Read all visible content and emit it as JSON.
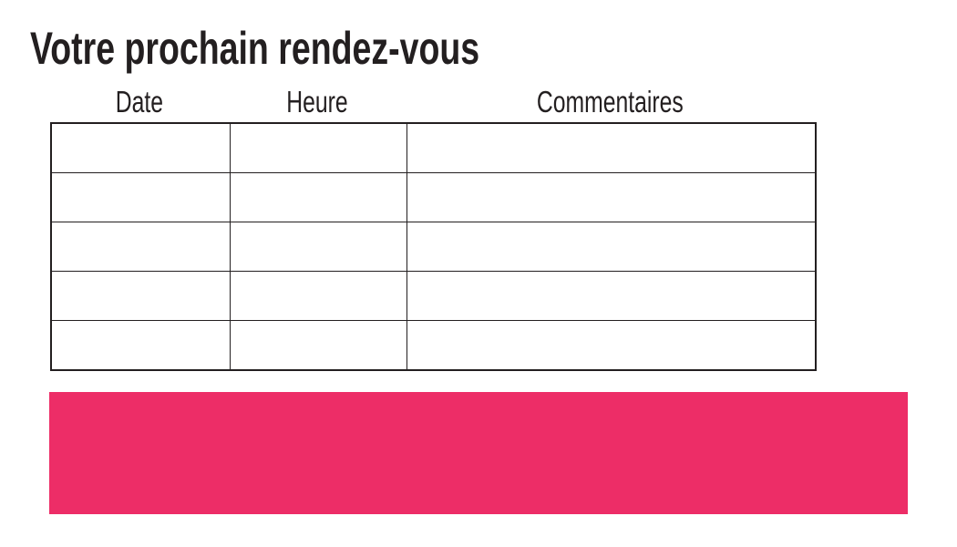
{
  "page": {
    "title": "Votre prochain rendez-vous"
  },
  "table": {
    "columns": [
      {
        "id": "date",
        "label": "Date"
      },
      {
        "id": "heure",
        "label": "Heure"
      },
      {
        "id": "commentaires",
        "label": "Commentaires"
      }
    ],
    "rows": [
      {
        "date": "",
        "heure": "",
        "commentaires": ""
      },
      {
        "date": "",
        "heure": "",
        "commentaires": ""
      },
      {
        "date": "",
        "heure": "",
        "commentaires": ""
      },
      {
        "date": "",
        "heure": "",
        "commentaires": ""
      },
      {
        "date": "",
        "heure": "",
        "commentaires": ""
      }
    ]
  },
  "highlight_block": {
    "text": ""
  },
  "colors": {
    "text": "#231f20",
    "border": "#231f20",
    "accent": "#ED2D67",
    "background": "#ffffff"
  }
}
